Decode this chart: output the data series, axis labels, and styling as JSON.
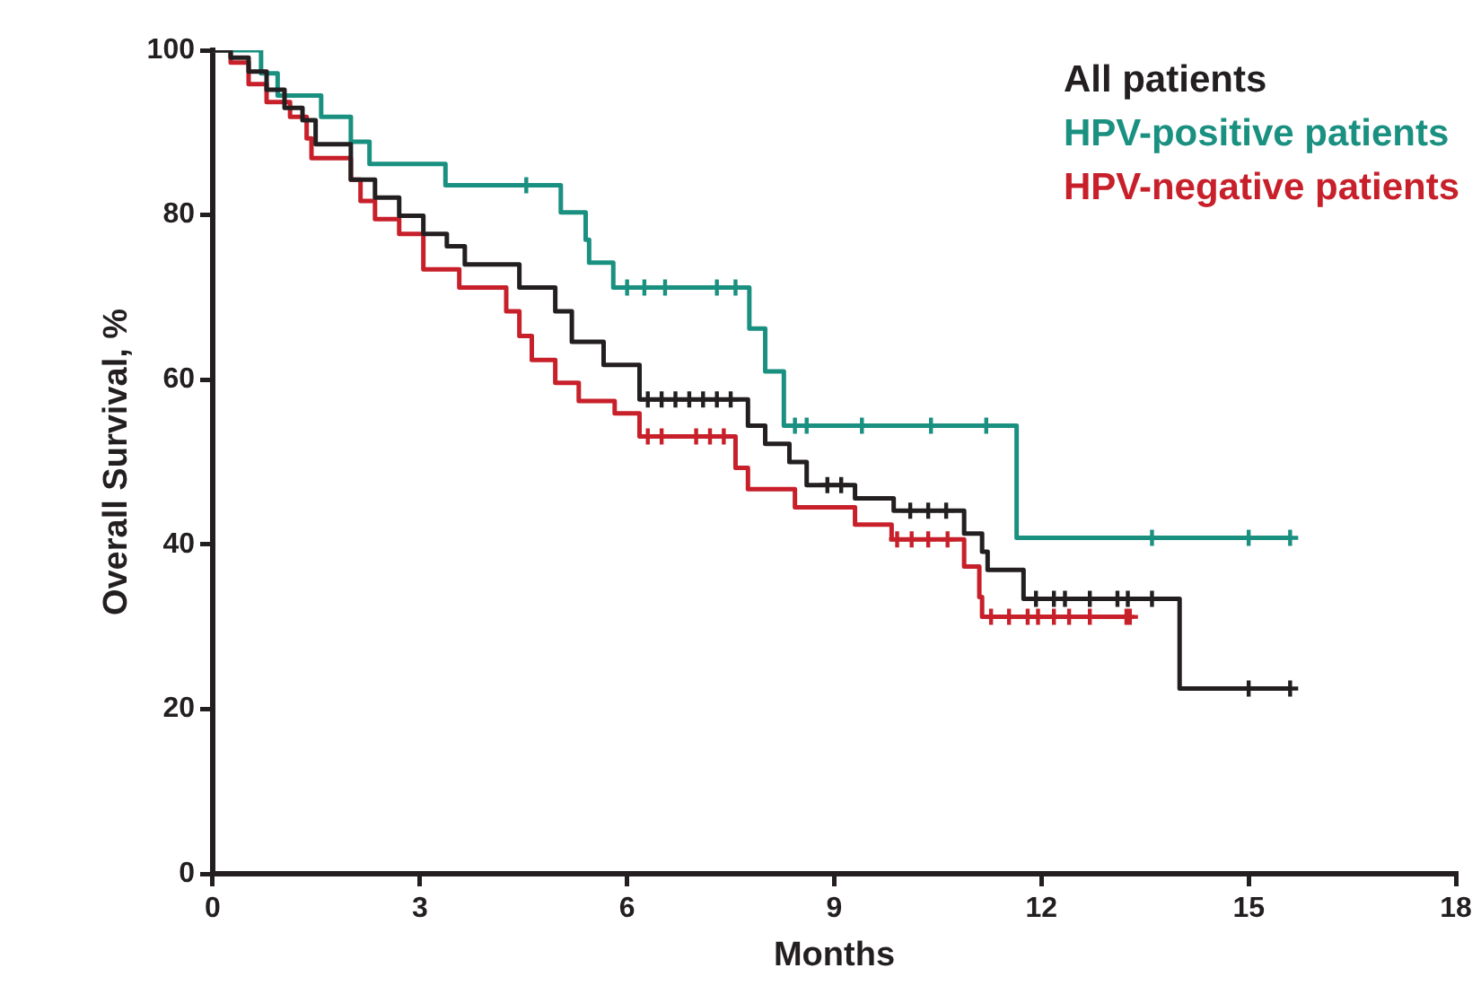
{
  "chart_data": {
    "type": "step",
    "xlabel": "Months",
    "ylabel": "Overall Survival, %",
    "xlim": [
      0,
      18
    ],
    "xticks": [
      0,
      3,
      6,
      9,
      12,
      15,
      18
    ],
    "ylim": [
      0,
      100
    ],
    "yticks": [
      0,
      20,
      40,
      60,
      80,
      100
    ],
    "grid": false,
    "legend": "top right",
    "line_style": "solid",
    "series": [
      {
        "name": "All patients",
        "color": "#231f20",
        "marker": "none",
        "x": [
          0,
          0.13,
          0.26,
          0.52,
          0.78,
          1.04,
          1.3,
          1.49,
          2.0,
          2.35,
          2.7,
          3.05,
          3.39,
          3.65,
          4.44,
          4.96,
          5.2,
          5.66,
          6.18,
          7.75,
          8.0,
          8.35,
          8.6,
          9.3,
          9.86,
          10.88,
          11.14,
          11.22,
          11.74,
          14.0,
          15.6
        ],
        "values": [
          100,
          100,
          99.1,
          97.4,
          95.2,
          93,
          91.5,
          88.6,
          84.3,
          82.1,
          79.9,
          77.7,
          76.2,
          74,
          71.2,
          68.3,
          64.6,
          61.8,
          57.6,
          54.4,
          52.2,
          50,
          47.2,
          45.6,
          44.1,
          41.3,
          39.1,
          36.9,
          33.4,
          22.5,
          22.5
        ]
      },
      {
        "name": "HPV-positive patients",
        "color": "#1a9080",
        "marker": "none",
        "x": [
          0,
          0.7,
          0.94,
          1.57,
          2.0,
          2.27,
          3.37,
          5.04,
          5.4,
          5.45,
          5.8,
          7.77,
          8.0,
          8.27,
          11.64,
          15.6
        ],
        "values": [
          100,
          97.2,
          94.5,
          91.9,
          88.9,
          86.2,
          83.6,
          80.3,
          77,
          74.2,
          71.2,
          66.2,
          61,
          54.4,
          40.8,
          40.8
        ]
      },
      {
        "name": "HPV-negative patients",
        "color": "#c8202a",
        "marker": "none",
        "x": [
          0,
          0.26,
          0.52,
          0.78,
          1.12,
          1.36,
          1.43,
          2.0,
          2.14,
          2.35,
          2.7,
          3.05,
          3.57,
          4.25,
          4.44,
          4.62,
          4.96,
          5.3,
          5.82,
          6.18,
          7.57,
          7.75,
          8.43,
          9.3,
          9.83,
          10.88,
          11.1,
          11.14,
          13.28
        ],
        "values": [
          100,
          98.5,
          95.9,
          93.7,
          91.9,
          89.3,
          86.9,
          84.3,
          81.7,
          79.5,
          77.7,
          73.4,
          71.2,
          68.3,
          65.3,
          62.4,
          59.6,
          57.4,
          55.9,
          53.1,
          49.3,
          46.7,
          44.5,
          42.4,
          40.6,
          37.3,
          33.6,
          31.2,
          31.2
        ]
      },
      {
        "color": "#231f20",
        "type": "scatter",
        "marker": "cross",
        "x": [
          6.3,
          6.5,
          6.7,
          6.9,
          7.1,
          7.3,
          7.5,
          8.9,
          9.1,
          10.1,
          10.36,
          10.62,
          11.92,
          12.18,
          12.34,
          12.7,
          13.1,
          13.25,
          13.6,
          15.0,
          15.6
        ],
        "values": [
          57.6,
          57.6,
          57.6,
          57.6,
          57.6,
          57.6,
          57.6,
          47.2,
          47.2,
          44.1,
          44.1,
          44.1,
          33.4,
          33.4,
          33.4,
          33.4,
          33.4,
          33.4,
          33.4,
          22.5,
          22.5
        ]
      },
      {
        "color": "#1a9080",
        "type": "scatter",
        "marker": "cross",
        "x": [
          4.54,
          6.0,
          6.25,
          6.55,
          7.3,
          7.57,
          8.43,
          8.6,
          9.4,
          10.4,
          11.2,
          13.6,
          15.0,
          15.6
        ],
        "values": [
          83.6,
          71.2,
          71.2,
          71.2,
          71.2,
          71.2,
          54.4,
          54.4,
          54.4,
          54.4,
          54.4,
          40.8,
          40.8,
          40.8
        ]
      },
      {
        "color": "#c8202a",
        "type": "scatter",
        "marker": "cross",
        "x": [
          6.3,
          6.5,
          7.0,
          7.2,
          7.4,
          9.91,
          10.12,
          10.36,
          10.64,
          11.27,
          11.53,
          11.8,
          11.95,
          12.18,
          12.4,
          12.7,
          13.23,
          13.28
        ],
        "values": [
          53.1,
          53.1,
          53.1,
          53.1,
          53.1,
          40.6,
          40.6,
          40.6,
          40.6,
          31.2,
          31.2,
          31.2,
          31.2,
          31.2,
          31.2,
          31.2,
          31.2,
          31.2
        ]
      }
    ]
  }
}
